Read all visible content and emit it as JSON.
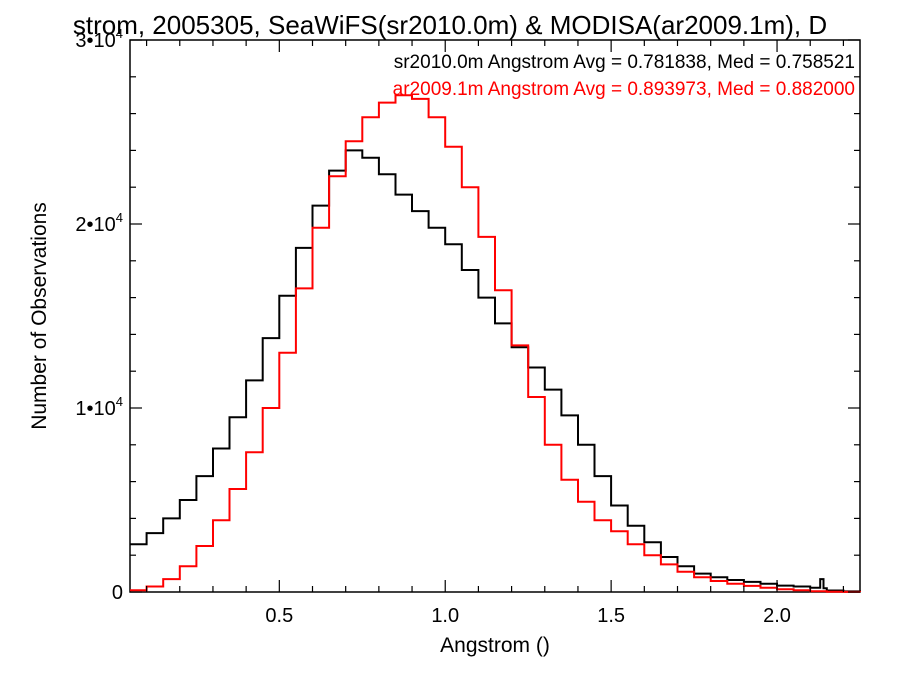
{
  "chart_data": {
    "type": "line",
    "title": "strom, 2005305, SeaWiFS(sr2010.0m) & MODISA(ar2009.1m), D",
    "xlabel": "Angstrom ()",
    "ylabel": "Number of Observations",
    "xlim": [
      0.05,
      2.25
    ],
    "ylim": [
      0,
      30000
    ],
    "x_ticks": [
      0.5,
      1.0,
      1.5,
      2.0
    ],
    "x_tick_labels": [
      "0.5",
      "1.0",
      "1.5",
      "2.0"
    ],
    "y_ticks": [
      0,
      10000,
      20000,
      30000
    ],
    "y_tick_labels": [
      {
        "mantissa": "0",
        "exp": ""
      },
      {
        "mantissa": "1•10",
        "exp": "4"
      },
      {
        "mantissa": "2•10",
        "exp": "4"
      },
      {
        "mantissa": "3•10",
        "exp": "4"
      }
    ],
    "grid": false,
    "legend_position": "top-right",
    "series": [
      {
        "name": "sr2010.0m Angstrom Avg = 0.781838, Med = 0.758521",
        "color": "#000000",
        "x": [
          0.05,
          0.1,
          0.15,
          0.2,
          0.25,
          0.3,
          0.35,
          0.4,
          0.45,
          0.5,
          0.55,
          0.6,
          0.65,
          0.7,
          0.75,
          0.8,
          0.85,
          0.9,
          0.95,
          1.0,
          1.05,
          1.1,
          1.15,
          1.2,
          1.25,
          1.3,
          1.35,
          1.4,
          1.45,
          1.5,
          1.55,
          1.6,
          1.65,
          1.7,
          1.75,
          1.8,
          1.85,
          1.9,
          1.95,
          2.0,
          2.05,
          2.1,
          2.13,
          2.14,
          2.15,
          2.2,
          2.25
        ],
        "y": [
          2600,
          3200,
          4000,
          5000,
          6300,
          7800,
          9500,
          11500,
          13800,
          16100,
          18700,
          21000,
          22900,
          24000,
          23600,
          22700,
          21600,
          20700,
          19800,
          18900,
          17500,
          16000,
          14600,
          13300,
          12200,
          11000,
          9600,
          8000,
          6300,
          4700,
          3600,
          2700,
          1900,
          1400,
          1000,
          800,
          650,
          550,
          450,
          350,
          300,
          230,
          700,
          200,
          80,
          30,
          0
        ]
      },
      {
        "name": "ar2009.1m Angstrom Avg = 0.893973, Med = 0.882000",
        "color": "#ff0000",
        "x": [
          0.05,
          0.1,
          0.15,
          0.2,
          0.25,
          0.3,
          0.35,
          0.4,
          0.45,
          0.5,
          0.55,
          0.6,
          0.65,
          0.7,
          0.75,
          0.8,
          0.85,
          0.9,
          0.95,
          1.0,
          1.05,
          1.1,
          1.15,
          1.2,
          1.25,
          1.3,
          1.35,
          1.4,
          1.45,
          1.5,
          1.55,
          1.6,
          1.65,
          1.7,
          1.75,
          1.8,
          1.85,
          1.9,
          1.95,
          2.0,
          2.05,
          2.1,
          2.15,
          2.2,
          2.25
        ],
        "y": [
          100,
          300,
          700,
          1400,
          2500,
          3900,
          5600,
          7600,
          10000,
          13000,
          16500,
          19800,
          22600,
          24500,
          25800,
          26600,
          27000,
          26800,
          25800,
          24200,
          22000,
          19300,
          16400,
          13400,
          10600,
          8000,
          6100,
          4900,
          3900,
          3300,
          2600,
          2000,
          1500,
          1100,
          800,
          600,
          450,
          330,
          230,
          150,
          90,
          40,
          15,
          5,
          0
        ]
      }
    ]
  }
}
